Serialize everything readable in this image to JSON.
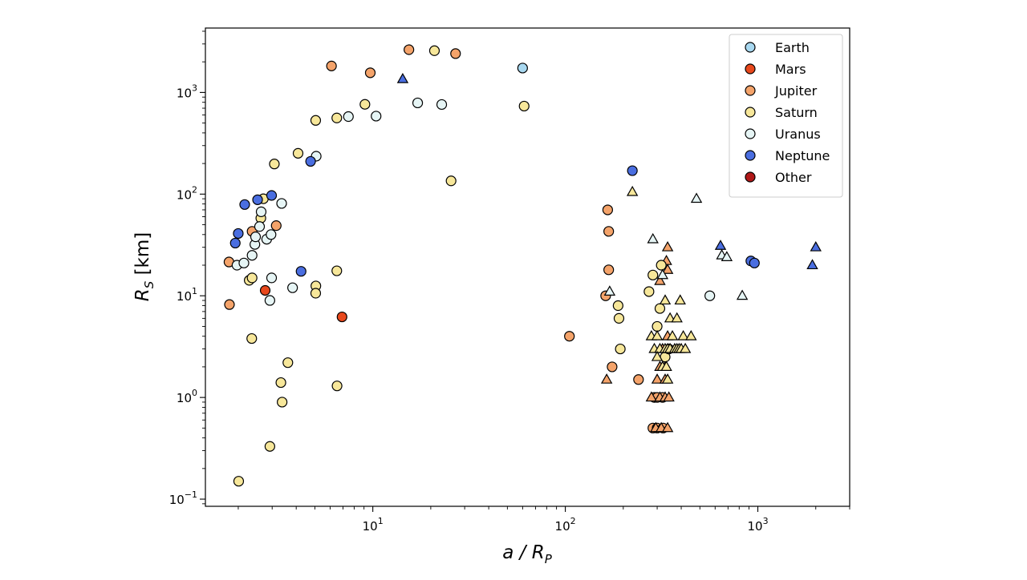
{
  "chart_data": {
    "type": "scatter",
    "xscale": "log",
    "yscale": "log",
    "xlim": [
      1.35,
      3000
    ],
    "ylim": [
      0.085,
      4300
    ],
    "x_ticks": [
      {
        "value": 10,
        "base": "10",
        "exp": "1"
      },
      {
        "value": 100,
        "base": "10",
        "exp": "2"
      },
      {
        "value": 1000,
        "base": "10",
        "exp": "3"
      }
    ],
    "y_ticks": [
      {
        "value": 0.1,
        "base": "10",
        "exp": "−1"
      },
      {
        "value": 1,
        "base": "10",
        "exp": "0"
      },
      {
        "value": 10,
        "base": "10",
        "exp": "1"
      },
      {
        "value": 100,
        "base": "10",
        "exp": "2"
      },
      {
        "value": 1000,
        "base": "10",
        "exp": "3"
      }
    ],
    "xlabel": {
      "main": "a / R",
      "sub": "P"
    },
    "ylabel": {
      "main": "R",
      "sub": "S",
      "rest": " [km]"
    },
    "legend": {
      "placement": "top-right"
    },
    "series": [
      {
        "name": "Earth",
        "color": "#a8d8f0",
        "points": [
          {
            "x": 60,
            "y": 1737,
            "m": "o"
          }
        ]
      },
      {
        "name": "Mars",
        "color": "#e8481c",
        "points": [
          {
            "x": 2.76,
            "y": 11.3,
            "m": "o"
          },
          {
            "x": 6.92,
            "y": 6.2,
            "m": "o"
          }
        ]
      },
      {
        "name": "Jupiter",
        "color": "#f4a36a",
        "points": [
          {
            "x": 1.79,
            "y": 21.5,
            "m": "o"
          },
          {
            "x": 1.8,
            "y": 8.2,
            "m": "o"
          },
          {
            "x": 2.36,
            "y": 43,
            "m": "o"
          },
          {
            "x": 3.15,
            "y": 49,
            "m": "o"
          },
          {
            "x": 6.1,
            "y": 1821,
            "m": "o"
          },
          {
            "x": 9.7,
            "y": 1561,
            "m": "o"
          },
          {
            "x": 15.4,
            "y": 2634,
            "m": "o"
          },
          {
            "x": 26.9,
            "y": 2410,
            "m": "o"
          },
          {
            "x": 105,
            "y": 4.0,
            "m": "o"
          },
          {
            "x": 162,
            "y": 10,
            "m": "o"
          },
          {
            "x": 166,
            "y": 70,
            "m": "o"
          },
          {
            "x": 168,
            "y": 43,
            "m": "o"
          },
          {
            "x": 168,
            "y": 18,
            "m": "o"
          },
          {
            "x": 175,
            "y": 2,
            "m": "o"
          },
          {
            "x": 240,
            "y": 1.5,
            "m": "o"
          },
          {
            "x": 290,
            "y": 1,
            "m": "o"
          },
          {
            "x": 300,
            "y": 1,
            "m": "o"
          },
          {
            "x": 320,
            "y": 1,
            "m": "o"
          },
          {
            "x": 285,
            "y": 0.5,
            "m": "o"
          },
          {
            "x": 300,
            "y": 0.5,
            "m": "o"
          },
          {
            "x": 322,
            "y": 0.5,
            "m": "o"
          },
          {
            "x": 164,
            "y": 1.5,
            "m": "^"
          },
          {
            "x": 280,
            "y": 1,
            "m": "^"
          },
          {
            "x": 310,
            "y": 1,
            "m": "^"
          },
          {
            "x": 330,
            "y": 1,
            "m": "^"
          },
          {
            "x": 345,
            "y": 1,
            "m": "^"
          },
          {
            "x": 300,
            "y": 1.5,
            "m": "^"
          },
          {
            "x": 330,
            "y": 1.5,
            "m": "^"
          },
          {
            "x": 310,
            "y": 2,
            "m": "^"
          },
          {
            "x": 330,
            "y": 2,
            "m": "^"
          },
          {
            "x": 295,
            "y": 0.5,
            "m": "^"
          },
          {
            "x": 315,
            "y": 0.5,
            "m": "^"
          },
          {
            "x": 340,
            "y": 0.5,
            "m": "^"
          },
          {
            "x": 310,
            "y": 14,
            "m": "^"
          },
          {
            "x": 335,
            "y": 22,
            "m": "^"
          },
          {
            "x": 340,
            "y": 18,
            "m": "^"
          },
          {
            "x": 340,
            "y": 30,
            "m": "^"
          },
          {
            "x": 320,
            "y": 3,
            "m": "^"
          },
          {
            "x": 340,
            "y": 4,
            "m": "^"
          }
        ]
      },
      {
        "name": "Saturn",
        "color": "#f7e79a",
        "points": [
          {
            "x": 2.01,
            "y": 0.15,
            "m": "o"
          },
          {
            "x": 2.28,
            "y": 14.2,
            "m": "o"
          },
          {
            "x": 2.36,
            "y": 15,
            "m": "o"
          },
          {
            "x": 2.35,
            "y": 3.8,
            "m": "o"
          },
          {
            "x": 2.62,
            "y": 58,
            "m": "o"
          },
          {
            "x": 2.7,
            "y": 90,
            "m": "o"
          },
          {
            "x": 2.92,
            "y": 0.33,
            "m": "o"
          },
          {
            "x": 3.08,
            "y": 198,
            "m": "o"
          },
          {
            "x": 3.33,
            "y": 1.4,
            "m": "o"
          },
          {
            "x": 3.38,
            "y": 0.9,
            "m": "o"
          },
          {
            "x": 3.62,
            "y": 2.2,
            "m": "o"
          },
          {
            "x": 4.09,
            "y": 252,
            "m": "o"
          },
          {
            "x": 5.06,
            "y": 12.5,
            "m": "o"
          },
          {
            "x": 5.05,
            "y": 10.6,
            "m": "o"
          },
          {
            "x": 5.05,
            "y": 531,
            "m": "o"
          },
          {
            "x": 6.5,
            "y": 561,
            "m": "o"
          },
          {
            "x": 6.5,
            "y": 17.6,
            "m": "o"
          },
          {
            "x": 6.52,
            "y": 1.3,
            "m": "o"
          },
          {
            "x": 9.1,
            "y": 764,
            "m": "o"
          },
          {
            "x": 20.9,
            "y": 2575,
            "m": "o"
          },
          {
            "x": 25.5,
            "y": 135,
            "m": "o"
          },
          {
            "x": 61.1,
            "y": 734,
            "m": "o"
          },
          {
            "x": 188,
            "y": 8,
            "m": "o"
          },
          {
            "x": 190,
            "y": 6,
            "m": "o"
          },
          {
            "x": 193,
            "y": 3,
            "m": "o"
          },
          {
            "x": 272,
            "y": 11,
            "m": "o"
          },
          {
            "x": 285,
            "y": 16,
            "m": "o"
          },
          {
            "x": 300,
            "y": 5,
            "m": "o"
          },
          {
            "x": 310,
            "y": 7.5,
            "m": "o"
          },
          {
            "x": 315,
            "y": 20,
            "m": "o"
          },
          {
            "x": 330,
            "y": 2.5,
            "m": "o"
          },
          {
            "x": 345,
            "y": 3,
            "m": "o"
          },
          {
            "x": 223,
            "y": 105,
            "m": "^"
          },
          {
            "x": 280,
            "y": 4,
            "m": "^"
          },
          {
            "x": 290,
            "y": 3,
            "m": "^"
          },
          {
            "x": 300,
            "y": 4,
            "m": "^"
          },
          {
            "x": 310,
            "y": 3,
            "m": "^"
          },
          {
            "x": 330,
            "y": 3,
            "m": "^"
          },
          {
            "x": 340,
            "y": 3,
            "m": "^"
          },
          {
            "x": 350,
            "y": 3,
            "m": "^"
          },
          {
            "x": 360,
            "y": 4,
            "m": "^"
          },
          {
            "x": 370,
            "y": 3,
            "m": "^"
          },
          {
            "x": 380,
            "y": 3,
            "m": "^"
          },
          {
            "x": 390,
            "y": 3,
            "m": "^"
          },
          {
            "x": 400,
            "y": 3,
            "m": "^"
          },
          {
            "x": 410,
            "y": 4,
            "m": "^"
          },
          {
            "x": 420,
            "y": 3,
            "m": "^"
          },
          {
            "x": 450,
            "y": 4,
            "m": "^"
          },
          {
            "x": 300,
            "y": 2.5,
            "m": "^"
          },
          {
            "x": 320,
            "y": 2,
            "m": "^"
          },
          {
            "x": 335,
            "y": 2,
            "m": "^"
          },
          {
            "x": 350,
            "y": 6,
            "m": "^"
          },
          {
            "x": 380,
            "y": 6,
            "m": "^"
          },
          {
            "x": 330,
            "y": 9,
            "m": "^"
          },
          {
            "x": 395,
            "y": 9,
            "m": "^"
          },
          {
            "x": 340,
            "y": 1.5,
            "m": "^"
          }
        ]
      },
      {
        "name": "Uranus",
        "color": "#e6f5f5",
        "points": [
          {
            "x": 1.97,
            "y": 20,
            "m": "o"
          },
          {
            "x": 2.14,
            "y": 21,
            "m": "o"
          },
          {
            "x": 2.36,
            "y": 25,
            "m": "o"
          },
          {
            "x": 2.44,
            "y": 32,
            "m": "o"
          },
          {
            "x": 2.46,
            "y": 38,
            "m": "o"
          },
          {
            "x": 2.58,
            "y": 48,
            "m": "o"
          },
          {
            "x": 2.63,
            "y": 67,
            "m": "o"
          },
          {
            "x": 2.81,
            "y": 36,
            "m": "o"
          },
          {
            "x": 2.96,
            "y": 40,
            "m": "o"
          },
          {
            "x": 2.92,
            "y": 9,
            "m": "o"
          },
          {
            "x": 2.98,
            "y": 15,
            "m": "o"
          },
          {
            "x": 3.36,
            "y": 81,
            "m": "o"
          },
          {
            "x": 3.83,
            "y": 12,
            "m": "o"
          },
          {
            "x": 5.08,
            "y": 236,
            "m": "o"
          },
          {
            "x": 7.47,
            "y": 579,
            "m": "o"
          },
          {
            "x": 10.4,
            "y": 585,
            "m": "o"
          },
          {
            "x": 17.1,
            "y": 789,
            "m": "o"
          },
          {
            "x": 22.8,
            "y": 761,
            "m": "o"
          },
          {
            "x": 563,
            "y": 10,
            "m": "o"
          },
          {
            "x": 170,
            "y": 11,
            "m": "^"
          },
          {
            "x": 285,
            "y": 36,
            "m": "^"
          },
          {
            "x": 320,
            "y": 16,
            "m": "^"
          },
          {
            "x": 480,
            "y": 90,
            "m": "^"
          },
          {
            "x": 650,
            "y": 25,
            "m": "^"
          },
          {
            "x": 690,
            "y": 24,
            "m": "^"
          },
          {
            "x": 830,
            "y": 10,
            "m": "^"
          }
        ]
      },
      {
        "name": "Neptune",
        "color": "#4a6ee0",
        "points": [
          {
            "x": 1.93,
            "y": 33,
            "m": "o"
          },
          {
            "x": 2.0,
            "y": 41,
            "m": "o"
          },
          {
            "x": 2.16,
            "y": 79,
            "m": "o"
          },
          {
            "x": 2.52,
            "y": 88,
            "m": "o"
          },
          {
            "x": 2.98,
            "y": 97,
            "m": "o"
          },
          {
            "x": 4.24,
            "y": 17.4,
            "m": "o"
          },
          {
            "x": 4.75,
            "y": 210,
            "m": "o"
          },
          {
            "x": 223,
            "y": 170,
            "m": "o"
          },
          {
            "x": 920,
            "y": 22,
            "m": "o"
          },
          {
            "x": 960,
            "y": 21,
            "m": "o"
          },
          {
            "x": 14.3,
            "y": 1353,
            "m": "^"
          },
          {
            "x": 640,
            "y": 31,
            "m": "^"
          },
          {
            "x": 1920,
            "y": 20,
            "m": "^"
          },
          {
            "x": 2000,
            "y": 30,
            "m": "^"
          }
        ]
      },
      {
        "name": "Other",
        "color": "#b01818",
        "points": []
      }
    ]
  }
}
